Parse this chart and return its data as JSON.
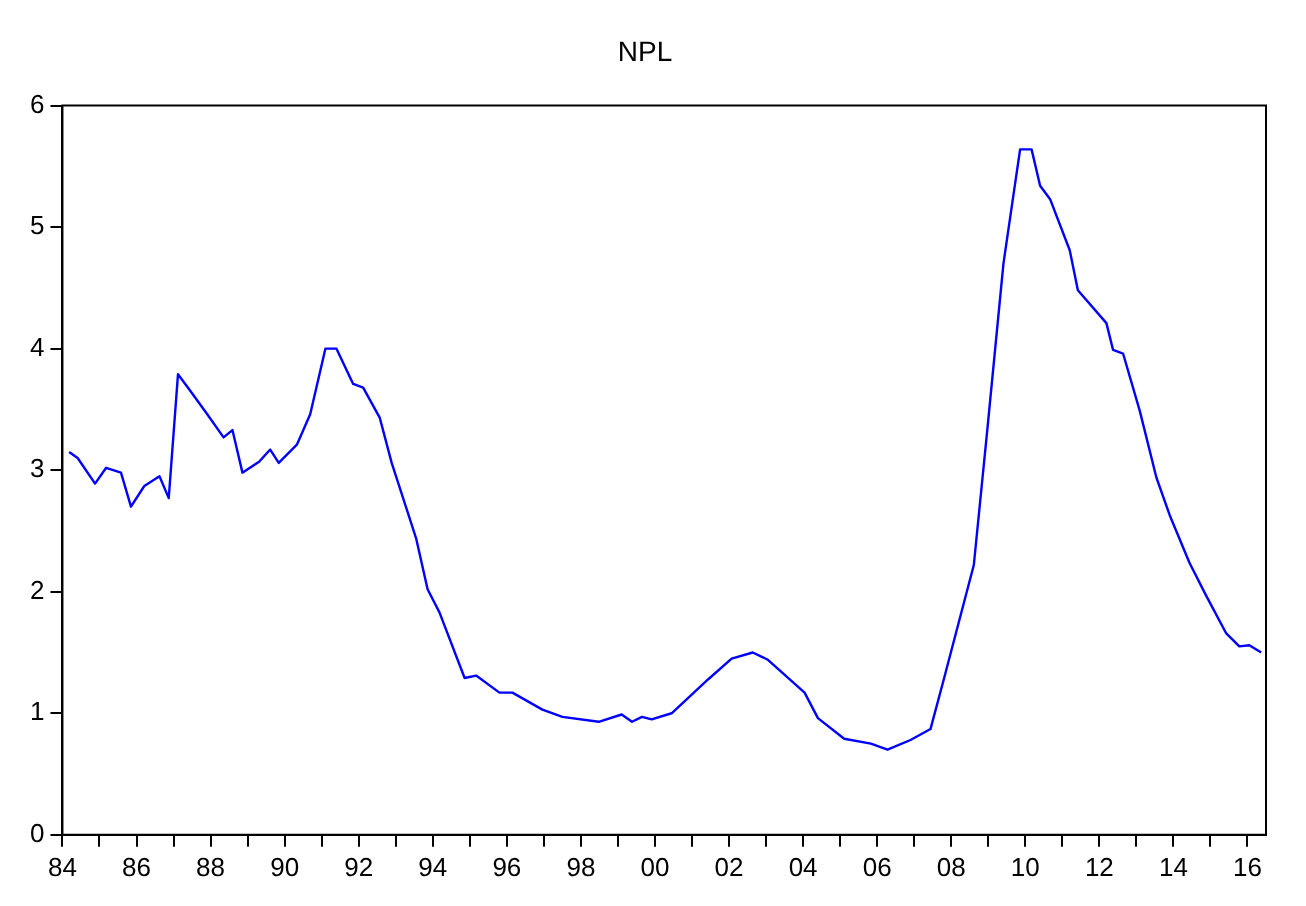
{
  "chart_data": {
    "type": "line",
    "title": "NPL",
    "x": [
      1984.18,
      1984.41,
      1984.88,
      1985.18,
      1985.58,
      1985.85,
      1986.21,
      1986.62,
      1986.87,
      1987.12,
      1987.46,
      1987.91,
      1988.35,
      1988.59,
      1988.86,
      1989.31,
      1989.61,
      1989.84,
      1990.33,
      1990.69,
      1991.1,
      1991.4,
      1991.85,
      1992.12,
      1992.57,
      1992.89,
      1993.55,
      1993.86,
      1994.18,
      1994.86,
      1995.17,
      1995.8,
      1996.15,
      1996.96,
      1997.5,
      1998.48,
      1999.1,
      1999.38,
      1999.65,
      1999.91,
      2000.45,
      2001.44,
      2002.07,
      2002.64,
      2003.05,
      2004.04,
      2004.4,
      2005.11,
      2005.83,
      2006.28,
      2006.9,
      2007.44,
      2007.8,
      2008.61,
      2008.97,
      2009.41,
      2009.86,
      2010.17,
      2010.4,
      2010.67,
      2011.2,
      2011.42,
      2012.19,
      2012.37,
      2012.64,
      2013.09,
      2013.54,
      2013.9,
      2014.43,
      2014.88,
      2015.42,
      2015.78,
      2016.05,
      2016.37
    ],
    "series": [
      {
        "color": "#0000ff",
        "values": [
          3.15,
          3.1,
          2.89,
          3.02,
          2.98,
          2.7,
          2.87,
          2.95,
          2.77,
          3.79,
          3.65,
          3.46,
          3.27,
          3.33,
          2.98,
          3.07,
          3.17,
          3.06,
          3.21,
          3.46,
          4.0,
          4.0,
          3.71,
          3.68,
          3.43,
          3.06,
          2.44,
          2.02,
          1.83,
          1.29,
          1.31,
          1.17,
          1.17,
          1.03,
          0.97,
          0.93,
          0.99,
          0.93,
          0.97,
          0.95,
          1.0,
          1.28,
          1.45,
          1.5,
          1.44,
          1.17,
          0.96,
          0.79,
          0.75,
          0.7,
          0.78,
          0.87,
          1.28,
          2.22,
          3.32,
          4.7,
          5.64,
          5.64,
          5.34,
          5.23,
          4.81,
          4.48,
          4.21,
          3.99,
          3.96,
          3.49,
          2.94,
          2.63,
          2.24,
          1.97,
          1.66,
          1.55,
          1.56,
          1.5
        ]
      }
    ],
    "xlim": [
      1984,
      2016.5
    ],
    "xticks": [
      {
        "value": 1984,
        "label": "84"
      },
      {
        "value": 1985,
        "label": null
      },
      {
        "value": 1986,
        "label": "86"
      },
      {
        "value": 1987,
        "label": null
      },
      {
        "value": 1988,
        "label": "88"
      },
      {
        "value": 1989,
        "label": null
      },
      {
        "value": 1990,
        "label": "90"
      },
      {
        "value": 1991,
        "label": null
      },
      {
        "value": 1992,
        "label": "92"
      },
      {
        "value": 1993,
        "label": null
      },
      {
        "value": 1994,
        "label": "94"
      },
      {
        "value": 1995,
        "label": null
      },
      {
        "value": 1996,
        "label": "96"
      },
      {
        "value": 1997,
        "label": null
      },
      {
        "value": 1998,
        "label": "98"
      },
      {
        "value": 1999,
        "label": null
      },
      {
        "value": 2000,
        "label": "00"
      },
      {
        "value": 2001,
        "label": null
      },
      {
        "value": 2002,
        "label": "02"
      },
      {
        "value": 2003,
        "label": null
      },
      {
        "value": 2004,
        "label": "04"
      },
      {
        "value": 2005,
        "label": null
      },
      {
        "value": 2006,
        "label": "06"
      },
      {
        "value": 2007,
        "label": null
      },
      {
        "value": 2008,
        "label": "08"
      },
      {
        "value": 2009,
        "label": null
      },
      {
        "value": 2010,
        "label": "10"
      },
      {
        "value": 2011,
        "label": null
      },
      {
        "value": 2012,
        "label": "12"
      },
      {
        "value": 2013,
        "label": null
      },
      {
        "value": 2014,
        "label": "14"
      },
      {
        "value": 2015,
        "label": null
      },
      {
        "value": 2016,
        "label": "16"
      }
    ],
    "ylim": [
      0,
      6
    ],
    "yticks": [
      0,
      1,
      2,
      3,
      4,
      5,
      6
    ],
    "grid": false,
    "legend": false,
    "marker": "none",
    "line_style": "solid"
  }
}
